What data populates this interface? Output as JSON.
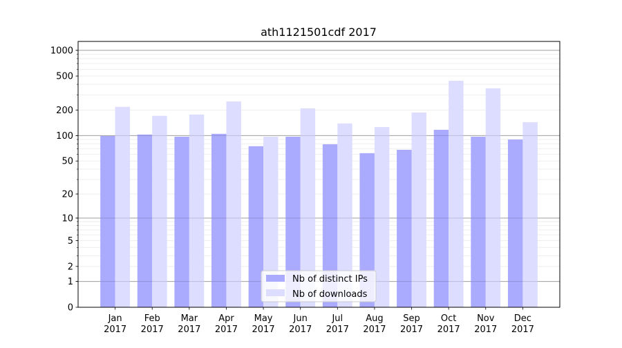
{
  "chart_data": {
    "type": "bar",
    "title": "ath1121501cdf 2017",
    "xlabel": "",
    "ylabel": "",
    "yscale": "log10(y+1)",
    "ylim": [
      0,
      1270
    ],
    "grid": true,
    "legend_position": "bottom-center",
    "categories": [
      "Jan",
      "Feb",
      "Mar",
      "Apr",
      "May",
      "Jun",
      "Jul",
      "Aug",
      "Sep",
      "Oct",
      "Nov",
      "Dec"
    ],
    "category_year": "2017",
    "y_ticks": [
      0,
      1,
      2,
      5,
      10,
      20,
      50,
      100,
      200,
      500,
      1000
    ],
    "series": [
      {
        "name": "Nb of distinct IPs",
        "color": "#aaaaff",
        "values": [
          99,
          103,
          97,
          105,
          75,
          97,
          79,
          62,
          68,
          117,
          97,
          90
        ]
      },
      {
        "name": "Nb of downloads",
        "color": "#ddddff",
        "values": [
          218,
          171,
          177,
          252,
          97,
          209,
          139,
          126,
          187,
          441,
          359,
          144
        ]
      }
    ]
  }
}
